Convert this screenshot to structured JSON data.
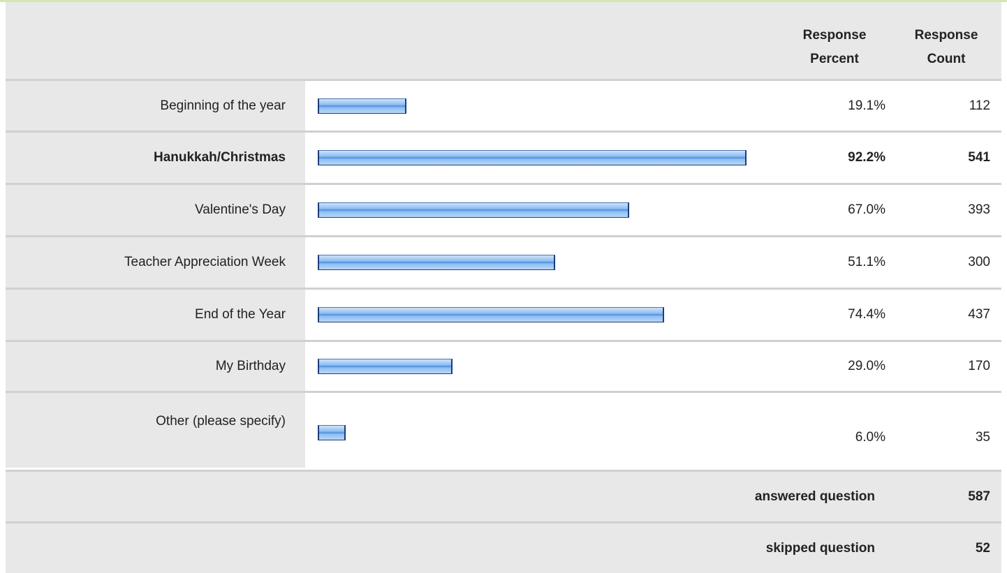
{
  "header": {
    "percent": "Response Percent",
    "count": "Response Count"
  },
  "rows": [
    {
      "label": "Beginning of the year",
      "percent": 19.1,
      "percent_label": "19.1%",
      "count": 112,
      "bold": false
    },
    {
      "label": "Hanukkah/Christmas",
      "percent": 92.2,
      "percent_label": "92.2%",
      "count": 541,
      "bold": true
    },
    {
      "label": "Valentine's Day",
      "percent": 67.0,
      "percent_label": "67.0%",
      "count": 393,
      "bold": false
    },
    {
      "label": "Teacher Appreciation Week",
      "percent": 51.1,
      "percent_label": "51.1%",
      "count": 300,
      "bold": false
    },
    {
      "label": "End of the Year",
      "percent": 74.4,
      "percent_label": "74.4%",
      "count": 437,
      "bold": false
    },
    {
      "label": "My Birthday",
      "percent": 29.0,
      "percent_label": "29.0%",
      "count": 170,
      "bold": false
    },
    {
      "label": "Other (please specify)",
      "percent": 6.0,
      "percent_label": "6.0%",
      "count": 35,
      "bold": false
    }
  ],
  "answered": {
    "label": "answered question",
    "count": 587
  },
  "skipped": {
    "label": "skipped question",
    "count": 52
  }
}
